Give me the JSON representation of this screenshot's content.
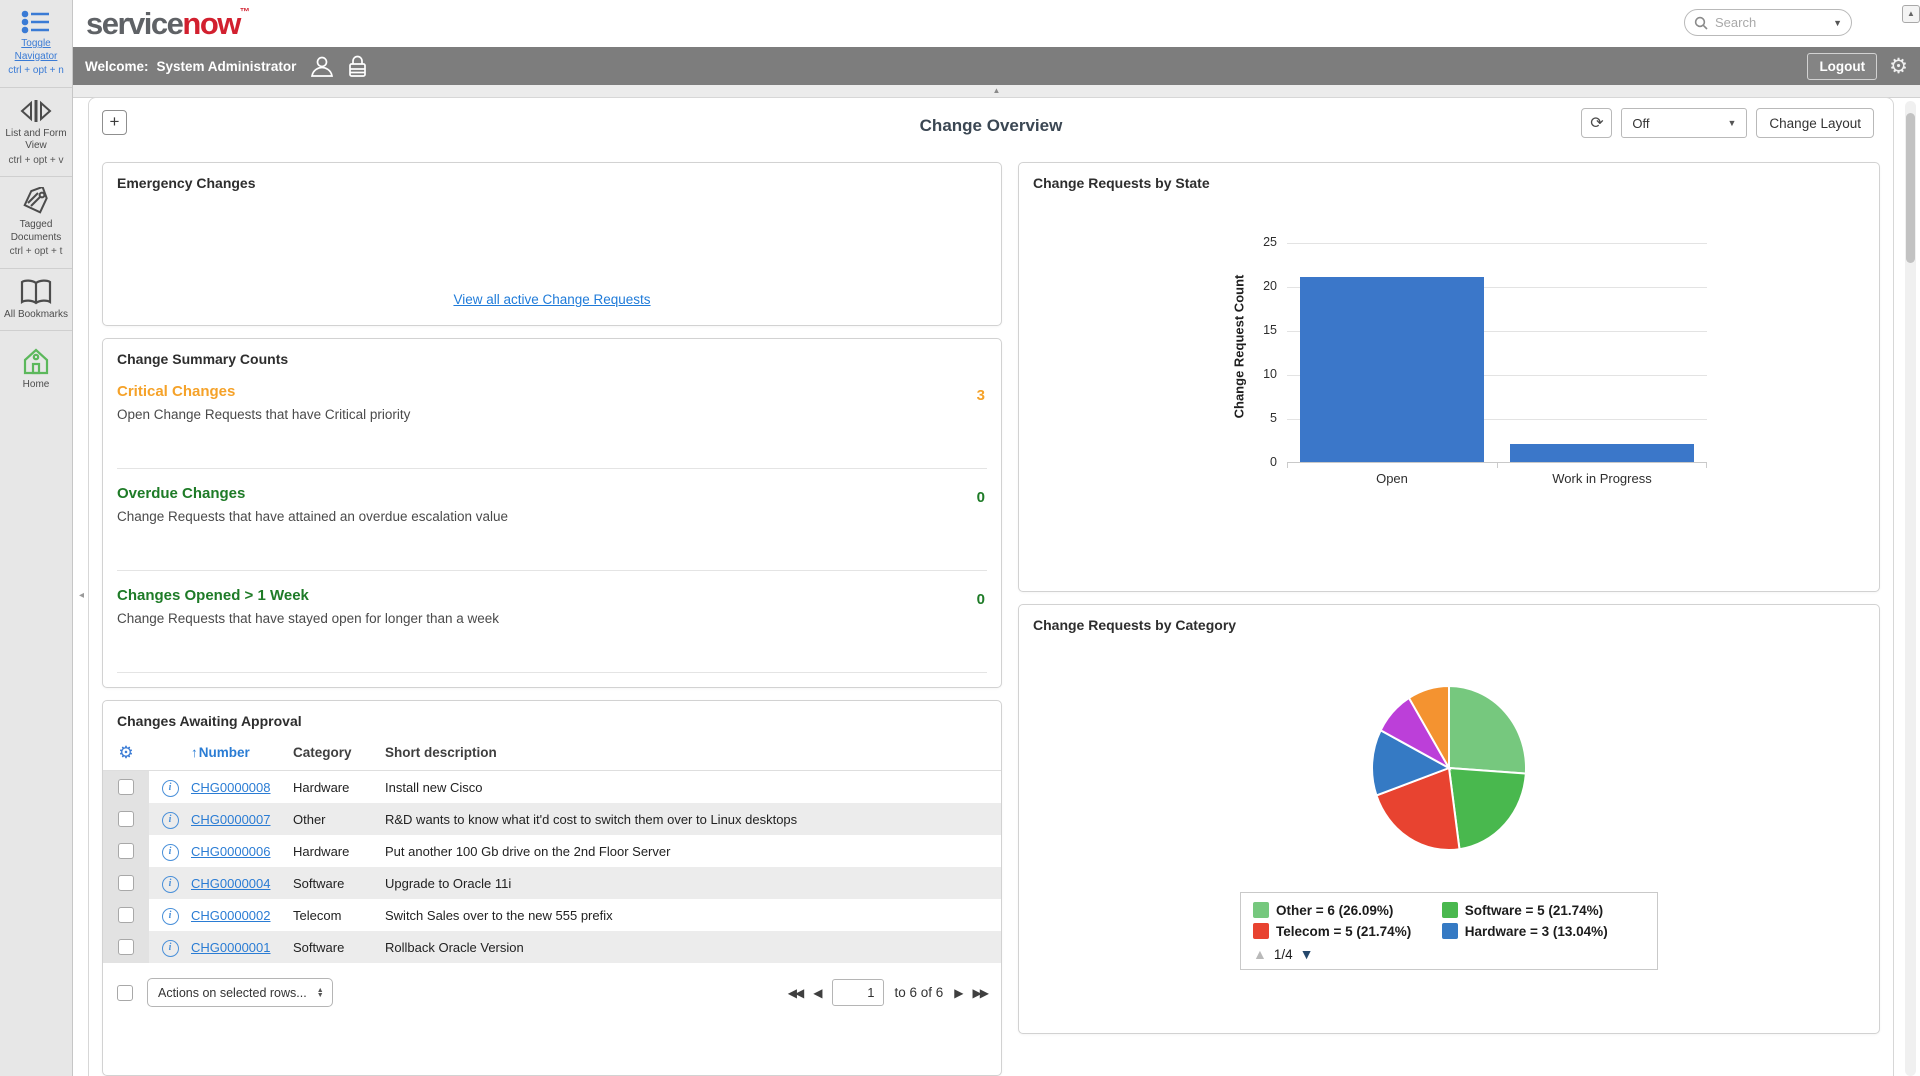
{
  "header": {
    "logo_service": "service",
    "logo_now": "now",
    "logo_tm": "™",
    "search_placeholder": "Search",
    "welcome_label": "Welcome:",
    "user_name": "System Administrator",
    "logout_label": "Logout"
  },
  "sidebar": {
    "items": [
      {
        "label": "Toggle Navigator",
        "shortcut": "ctrl + opt + n"
      },
      {
        "label": "List and Form View",
        "shortcut": "ctrl + opt + v"
      },
      {
        "label": "Tagged Documents",
        "shortcut": "ctrl + opt + t"
      },
      {
        "label": "All Bookmarks",
        "shortcut": ""
      },
      {
        "label": "Home",
        "shortcut": ""
      }
    ]
  },
  "page": {
    "title": "Change Overview",
    "add_button": "+",
    "refresh_value": "Off",
    "change_layout_label": "Change Layout"
  },
  "emergency": {
    "title": "Emergency Changes",
    "link": "View all active Change Requests"
  },
  "summary": {
    "title": "Change Summary Counts",
    "items": [
      {
        "heading": "Critical Changes",
        "description": "Open Change Requests that have Critical priority",
        "value": "3",
        "color": "#f5a229"
      },
      {
        "heading": "Overdue Changes",
        "description": "Change Requests that have attained an overdue escalation value",
        "value": "0",
        "color": "#1e7b27"
      },
      {
        "heading": "Changes Opened > 1 Week",
        "description": "Change Requests that have stayed open for longer than a week",
        "value": "0",
        "color": "#1e7b27"
      }
    ]
  },
  "approval": {
    "title": "Changes Awaiting Approval",
    "sort_arrow": "↑",
    "columns": {
      "number": "Number",
      "category": "Category",
      "short_description": "Short description"
    },
    "rows": [
      {
        "number": "CHG0000008",
        "category": "Hardware",
        "short_description": "Install new Cisco"
      },
      {
        "number": "CHG0000007",
        "category": "Other",
        "short_description": "R&D wants to know what it'd cost to switch them over to Linux desktops"
      },
      {
        "number": "CHG0000006",
        "category": "Hardware",
        "short_description": "Put another 100 Gb drive on the 2nd Floor Server"
      },
      {
        "number": "CHG0000004",
        "category": "Software",
        "short_description": "Upgrade to Oracle 11i"
      },
      {
        "number": "CHG0000002",
        "category": "Telecom",
        "short_description": "Switch Sales over to the new 555 prefix"
      },
      {
        "number": "CHG0000001",
        "category": "Software",
        "short_description": "Rollback Oracle Version"
      }
    ],
    "footer": {
      "actions_label": "Actions on selected rows...",
      "page_value": "1",
      "range_label": "to 6 of 6"
    }
  },
  "chart_data": [
    {
      "type": "bar",
      "title": "Change Requests by State",
      "categories": [
        "Open",
        "Work in Progress"
      ],
      "values": [
        21,
        2
      ],
      "xlabel": "",
      "ylabel": "Change Request Count",
      "ylim": [
        0,
        25
      ],
      "yticks": [
        0,
        5,
        10,
        15,
        20,
        25
      ],
      "grid": true,
      "bar_color": "#3b77c9",
      "legend_position": "none"
    },
    {
      "type": "pie",
      "title": "Change Requests by Category",
      "slices": [
        {
          "label": "Other",
          "value": 6,
          "pct": "26.09%",
          "color": "#76c87e"
        },
        {
          "label": "Software",
          "value": 5,
          "pct": "21.74%",
          "color": "#49b84e"
        },
        {
          "label": "Telecom",
          "value": 5,
          "pct": "21.74%",
          "color": "#e84330"
        },
        {
          "label": "Hardware",
          "value": 3,
          "pct": "13.04%",
          "color": "#357ac4"
        },
        {
          "label": "",
          "value": 2,
          "pct": "",
          "color": "#bc3fd9"
        },
        {
          "label": "",
          "value": 2,
          "pct": "",
          "color": "#f49330"
        }
      ],
      "legend": [
        {
          "text": "Other = 6 (26.09%)",
          "color": "#76c87e"
        },
        {
          "text": "Software = 5 (21.74%)",
          "color": "#49b84e"
        },
        {
          "text": "Telecom = 5 (21.74%)",
          "color": "#e84330"
        },
        {
          "text": "Hardware = 3 (13.04%)",
          "color": "#357ac4"
        }
      ],
      "legend_page": "1/4",
      "legend_position": "bottom"
    }
  ]
}
